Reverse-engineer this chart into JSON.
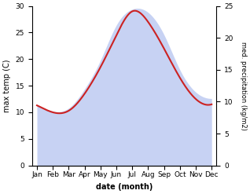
{
  "months": [
    "Jan",
    "Feb",
    "Mar",
    "Apr",
    "May",
    "Jun",
    "Jul",
    "Aug",
    "Sep",
    "Oct",
    "Nov",
    "Dec"
  ],
  "month_positions": [
    0,
    1,
    2,
    3,
    4,
    5,
    6,
    7,
    8,
    9,
    10,
    11
  ],
  "temp_values": [
    11.3,
    10.0,
    10.3,
    13.5,
    18.5,
    24.5,
    29.0,
    27.0,
    22.0,
    16.5,
    12.5,
    11.5
  ],
  "precip_values": [
    9.5,
    8.5,
    9.0,
    12.0,
    16.5,
    22.0,
    24.5,
    24.0,
    20.5,
    15.0,
    11.5,
    10.5
  ],
  "temp_color": "#cc2222",
  "precip_color": "#aabbee",
  "precip_fill_alpha": 0.65,
  "ylabel_left": "max temp (C)",
  "ylabel_right": "med. precipitation (kg/m2)",
  "xlabel": "date (month)",
  "ylim_left": [
    0,
    30
  ],
  "ylim_right": [
    0,
    25
  ],
  "yticks_left": [
    0,
    5,
    10,
    15,
    20,
    25,
    30
  ],
  "yticks_right": [
    0,
    5,
    10,
    15,
    20,
    25
  ],
  "background_color": "#ffffff",
  "line_width": 1.5,
  "ylabel_left_fontsize": 7,
  "ylabel_right_fontsize": 6,
  "xlabel_fontsize": 7,
  "tick_fontsize": 6.5,
  "figsize": [
    3.18,
    2.47
  ],
  "dpi": 100
}
